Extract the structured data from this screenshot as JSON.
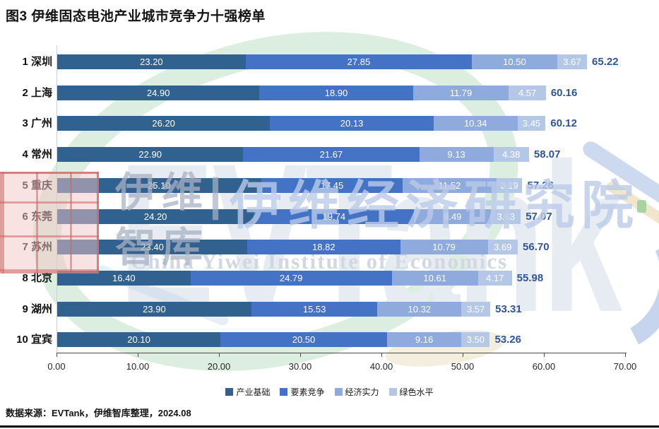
{
  "title": "图3 伊维固态电池产业城市竞争力十强榜单",
  "source_note": "数据来源：EVTank，伊维智库整理，2024.08",
  "colors": {
    "series": [
      "#31618F",
      "#4472C4",
      "#8FAADC",
      "#B4C7E7"
    ],
    "total_label": "#2F5597",
    "axis": "#4a4a4a"
  },
  "watermark": {
    "logo_text": "EVTank",
    "brand_line1": "伊维",
    "brand_line2": "智库",
    "divider": "|",
    "institute_cn": "伊维经济研究院",
    "institute_en": "China Yiwei Institute of Economics"
  },
  "chart_data": {
    "type": "bar",
    "orientation": "horizontal",
    "stacked": true,
    "title": "图3 伊维固态电池产业城市竞争力十强榜单",
    "categories": [
      "1 深圳",
      "2 上海",
      "3 广州",
      "4 常州",
      "5 重庆",
      "6 东莞",
      "7 苏州",
      "8 北京",
      "9 湖州",
      "10 宜宾"
    ],
    "series": [
      {
        "name": "产业基础",
        "color": "#31618F",
        "values": [
          23.2,
          24.9,
          26.2,
          22.9,
          25.1,
          24.2,
          23.4,
          16.4,
          23.9,
          20.1
        ]
      },
      {
        "name": "要素竞争",
        "color": "#4472C4",
        "values": [
          27.85,
          18.9,
          20.13,
          21.67,
          17.45,
          19.74,
          18.82,
          24.79,
          15.53,
          20.5
        ]
      },
      {
        "name": "经济实力",
        "color": "#8FAADC",
        "values": [
          10.5,
          11.79,
          10.34,
          9.13,
          11.52,
          9.49,
          10.79,
          10.61,
          10.32,
          9.16
        ]
      },
      {
        "name": "绿色水平",
        "color": "#B4C7E7",
        "values": [
          3.67,
          4.57,
          3.45,
          4.38,
          3.19,
          3.63,
          3.69,
          4.17,
          3.57,
          3.5
        ]
      }
    ],
    "totals": [
      65.22,
      60.16,
      60.12,
      58.07,
      57.26,
      57.07,
      56.7,
      55.98,
      53.31,
      53.26
    ],
    "xlim": [
      0,
      70
    ],
    "xticks": [
      0,
      10,
      20,
      30,
      40,
      50,
      60,
      70
    ],
    "xtick_labels": [
      "0.00",
      "10.00",
      "20.00",
      "30.00",
      "40.00",
      "50.00",
      "60.00",
      "70.00"
    ],
    "value_label_style": "white-inside, 2 decimals",
    "grid": false,
    "legend_position": "bottom"
  }
}
